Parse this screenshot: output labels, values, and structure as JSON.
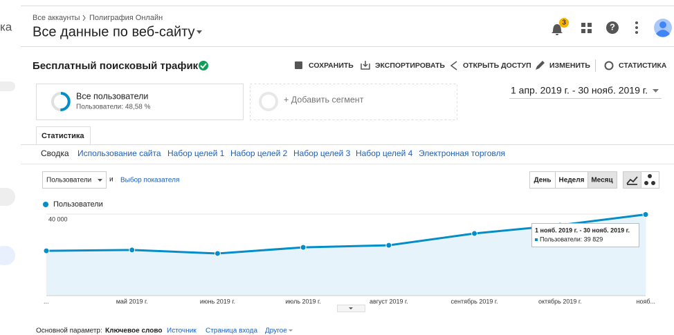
{
  "header": {
    "app_name_fragment": "ка",
    "breadcrumb_root": "Все аккаунты",
    "breadcrumb_account": "Полиграфия Онлайн",
    "view": "Все данные по веб-сайту",
    "notifications": 3
  },
  "report": {
    "title": "Бесплатный поисковый трафик",
    "actions": [
      "СОХРАНИТЬ",
      "ЭКСПОРТИРОВАТЬ",
      "ОТКРЫТЬ ДОСТУП",
      "ИЗМЕНИТЬ",
      "СТАТИСТИКА"
    ]
  },
  "segments": [
    {
      "name": "Все пользователи",
      "detail": "Пользователи: 48,58 %"
    },
    {
      "name": "+ Добавить сегмент"
    }
  ],
  "date_range": "1 апр. 2019 г. - 30 нояб. 2019 г.",
  "tab": "Статистика",
  "subtabs": [
    "Сводка",
    "Использование сайта",
    "Набор целей 1",
    "Набор целей 2",
    "Набор целей 3",
    "Набор целей 4",
    "Электронная торговля"
  ],
  "metric_selector": {
    "metric": "Пользователи",
    "conjunction": "и",
    "link": "Выбор показателя"
  },
  "granularity": [
    "День",
    "Неделя",
    "Месяц"
  ],
  "chart_data": {
    "type": "line",
    "area": true,
    "categories": [
      "...",
      "май 2019 г.",
      "июнь 2019 г.",
      "июль 2019 г.",
      "август 2019 г.",
      "сентябрь 2019 г.",
      "октябрь 2019 г.",
      "нояб..."
    ],
    "series": [
      {
        "name": "Пользователи",
        "color": "#058dc7",
        "values": [
          22000,
          22400,
          20700,
          23700,
          24700,
          30500,
          34600,
          39829
        ]
      }
    ],
    "ylim": [
      0,
      43400
    ],
    "yticks": [
      {
        "value": 20000,
        "label": "20 000"
      },
      {
        "value": 40000,
        "label": "40 000"
      }
    ],
    "grid": true,
    "tooltip": {
      "title": "1 нояб. 2019 г. - 30 нояб. 2019 г.",
      "text": "Пользователи: 39 829"
    }
  },
  "primary_dimension": {
    "label": "Основной параметр:",
    "options": [
      "Ключевое слово",
      "Источник",
      "Страница входа",
      "Другое"
    ]
  }
}
